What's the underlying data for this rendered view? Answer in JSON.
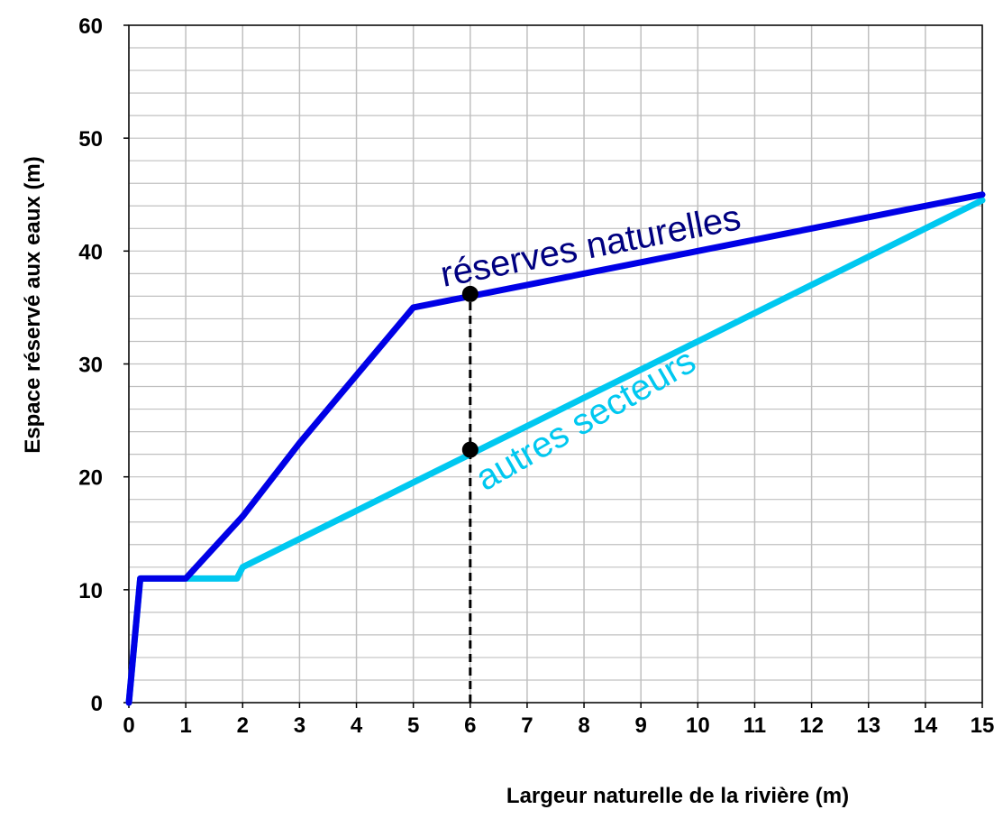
{
  "chart_data": {
    "type": "line",
    "xlabel": "Largeur naturelle de la rivière (m)",
    "ylabel": "Espace réservé aux eaux (m)",
    "xlim": [
      0,
      15
    ],
    "ylim": [
      0,
      60
    ],
    "x_ticks": [
      "0",
      "1",
      "2",
      "3",
      "4",
      "5",
      "6",
      "7",
      "8",
      "9",
      "10",
      "11",
      "12",
      "13",
      "14",
      "15"
    ],
    "y_ticks": [
      "0",
      "10",
      "20",
      "30",
      "40",
      "50",
      "60"
    ],
    "grid": true,
    "series": [
      {
        "name": "réserves naturelles",
        "color": "#0000e6",
        "x": [
          0,
          0.2,
          1,
          2,
          3,
          4,
          5,
          6,
          7,
          8,
          9,
          10,
          11,
          12,
          13,
          14,
          15
        ],
        "y": [
          0,
          11,
          11,
          16.5,
          23,
          29,
          35,
          36,
          37,
          38,
          39,
          40,
          41,
          42,
          43,
          44,
          45
        ]
      },
      {
        "name": "autres secteurs",
        "color": "#00c8f0",
        "x": [
          0,
          0.2,
          1.9,
          2,
          3,
          4,
          5,
          6,
          7,
          8,
          9,
          10,
          11,
          12,
          13,
          14,
          15
        ],
        "y": [
          0,
          11,
          11,
          12,
          14.5,
          17,
          19.5,
          22,
          24.5,
          27,
          29.5,
          32,
          34.5,
          37,
          39.5,
          42,
          44.5
        ]
      }
    ],
    "markers": [
      {
        "x": 6,
        "y": 36.2,
        "color": "#000000"
      },
      {
        "x": 6,
        "y": 22.4,
        "color": "#000000"
      }
    ],
    "reference_line": {
      "x": 6,
      "y_from": 0,
      "y_to": 36.2,
      "style": "dashed",
      "color": "#000000"
    }
  }
}
